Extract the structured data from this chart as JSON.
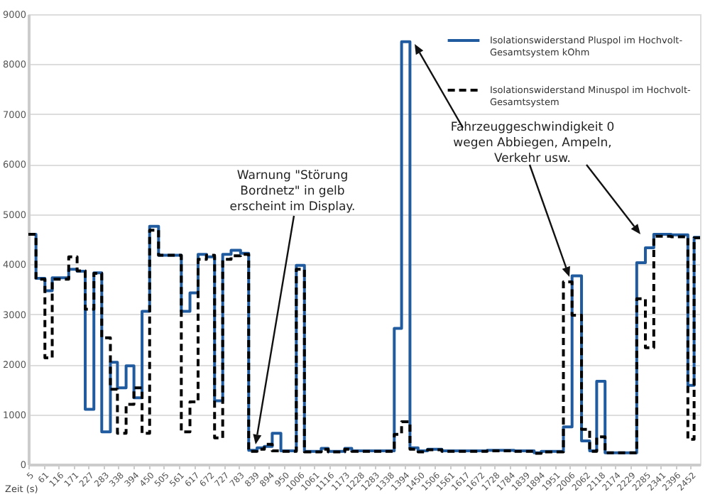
{
  "chart_data": {
    "type": "step",
    "xlabel": "Zeit (s)",
    "annotations": [
      "Warnung \"Störung Bordnetz\" in gelb erscheint im Display.",
      "Fahrzeuggeschwindigkeit 0 wegen Abbiegen, Ampeln, Verkehr usw."
    ],
    "x": [
      5,
      33,
      66,
      93,
      154,
      185,
      215,
      247,
      276,
      308,
      334,
      366,
      395,
      425,
      453,
      486,
      570,
      602,
      632,
      663,
      693,
      723,
      754,
      789,
      819,
      850,
      877,
      906,
      938,
      995,
      1025,
      1087,
      1113,
      1174,
      1200,
      1357,
      1384,
      1415,
      1445,
      1480,
      1533,
      1700,
      1800,
      1874,
      1900,
      1982,
      2014,
      2049,
      2079,
      2105,
      2136,
      2253,
      2285,
      2316,
      2380,
      2442,
      2465,
      2487
    ],
    "series": [
      {
        "name": "Isolationswiderstand Pluspol im Hochvolt-Gesamtsystem kOhm",
        "color": "#1f5b9e",
        "line_style": "solid",
        "values": [
          4600,
          3720,
          3470,
          3730,
          3900,
          3860,
          1100,
          3830,
          650,
          2040,
          1530,
          1970,
          1330,
          3060,
          4760,
          4180,
          3060,
          3430,
          4200,
          4150,
          1270,
          4200,
          4280,
          4220,
          280,
          330,
          360,
          620,
          270,
          3980,
          260,
          320,
          260,
          320,
          270,
          2720,
          8450,
          330,
          270,
          300,
          270,
          280,
          270,
          230,
          260,
          750,
          3770,
          470,
          270,
          1660,
          230,
          4030,
          4330,
          4600,
          4590,
          1580,
          4540,
          4540
        ]
      },
      {
        "name": "Isolationswiderstand Minuspol im Hochvolt-Gesamtsystem",
        "color": "#000000",
        "line_style": "dashed",
        "values": [
          4600,
          3700,
          2130,
          3700,
          4150,
          3870,
          3100,
          3820,
          2530,
          1500,
          620,
          1200,
          1530,
          620,
          4680,
          4180,
          650,
          1250,
          4100,
          4180,
          530,
          4100,
          4170,
          4200,
          260,
          300,
          400,
          270,
          260,
          3900,
          250,
          300,
          250,
          300,
          260,
          600,
          850,
          300,
          250,
          290,
          260,
          270,
          260,
          220,
          250,
          3650,
          2980,
          700,
          260,
          550,
          230,
          3310,
          2330,
          4560,
          4550,
          500,
          4530,
          4530
        ]
      }
    ],
    "xlim": [
      5,
      2487
    ],
    "xticks": [
      5,
      61,
      116,
      171,
      227,
      283,
      338,
      394,
      450,
      505,
      561,
      617,
      672,
      727,
      783,
      839,
      894,
      950,
      1006,
      1061,
      1116,
      1173,
      1228,
      1283,
      1338,
      1394,
      1450,
      1506,
      1561,
      1617,
      1672,
      1728,
      1784,
      1839,
      1894,
      1951,
      2006,
      2062,
      2118,
      2174,
      2229,
      2285,
      2341,
      2396,
      2452
    ],
    "ylim": [
      0,
      9000
    ],
    "yticks": [
      0,
      1000,
      2000,
      3000,
      4000,
      5000,
      6000,
      7000,
      8000,
      9000
    ],
    "grid": "y",
    "legend": "top right"
  }
}
